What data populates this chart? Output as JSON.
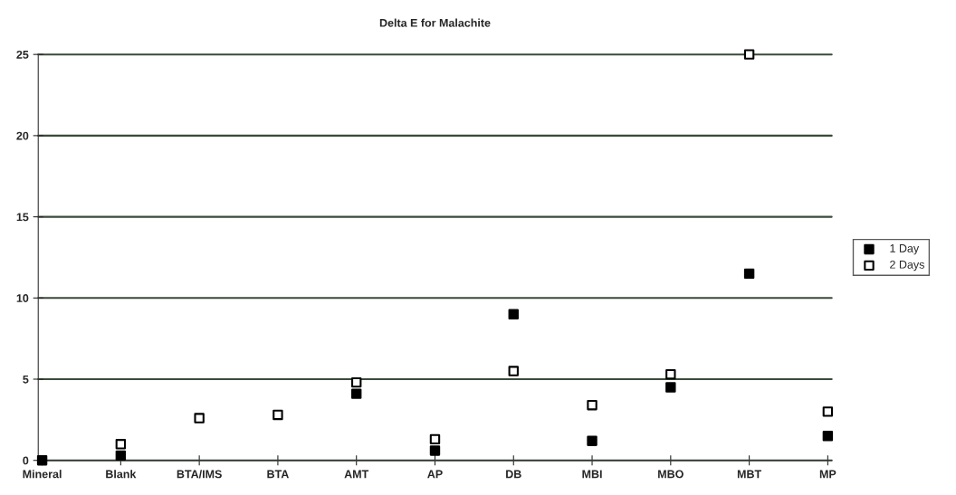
{
  "chart_data": {
    "type": "scatter",
    "title": "Delta E for Malachite",
    "categories": [
      "Mineral",
      "Blank",
      "BTA/IMS",
      "BTA",
      "AMT",
      "AP",
      "DB",
      "MBI",
      "MBO",
      "MBT",
      "MP"
    ],
    "series": [
      {
        "name": "1 Day",
        "color": "#000000",
        "values": [
          0,
          0.3,
          null,
          null,
          4.1,
          0.6,
          9.0,
          1.2,
          4.5,
          11.5,
          1.5
        ]
      },
      {
        "name": "2 Days",
        "color": "#ffffff",
        "values": [
          null,
          1.0,
          2.6,
          2.8,
          4.8,
          1.3,
          5.5,
          3.4,
          5.3,
          25.0,
          3.0
        ]
      }
    ],
    "ylim": [
      0,
      25
    ],
    "yticks": [
      0,
      5,
      10,
      15,
      20,
      25
    ],
    "grid": "y",
    "legend": "right",
    "marker": "square"
  }
}
